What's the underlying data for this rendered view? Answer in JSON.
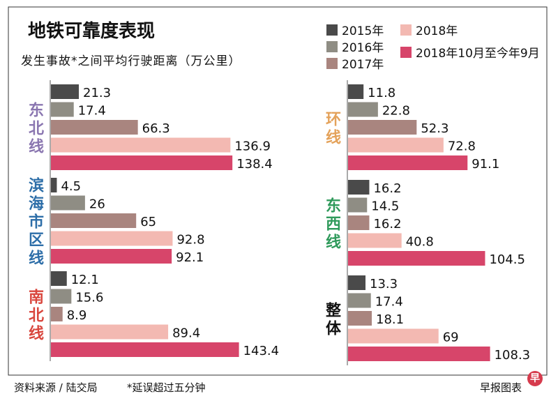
{
  "header": {
    "title": "地铁可靠度表现",
    "subtitle": "发生事故*之间平均行驶距离（万公里）"
  },
  "footer": {
    "source": "资料来源 / 陆交局",
    "note": "*延误超过五分钟",
    "credit": "早报图表",
    "stamp": "早"
  },
  "colors": {
    "s2015": "#4a4a4a",
    "s2016": "#8f8d84",
    "s2017": "#a9857f",
    "s2018": "#f3b9b2",
    "s2018_10": "#d7456a"
  },
  "chart_data": {
    "type": "bar",
    "orientation": "horizontal",
    "title": "地铁可靠度表现",
    "subtitle": "发生事故*之间平均行驶距离（万公里）",
    "unit": "万公里",
    "series": [
      {
        "name": "2015年",
        "color": "#4a4a4a"
      },
      {
        "name": "2016年",
        "color": "#8f8d84"
      },
      {
        "name": "2017年",
        "color": "#a9857f"
      },
      {
        "name": "2018年",
        "color": "#f3b9b2"
      },
      {
        "name": "2018年10月至今年9月",
        "color": "#d7456a"
      }
    ],
    "groups": [
      {
        "name": "东北线",
        "label_chars": [
          "东",
          "北",
          "线"
        ],
        "label_color": "#8a76b0",
        "values": [
          21.3,
          17.4,
          66.3,
          136.9,
          138.4
        ],
        "labels": [
          "21.3",
          "17.4",
          "66.3",
          "136.9",
          "138.4"
        ]
      },
      {
        "name": "滨海市区线",
        "label_chars": [
          "滨",
          "海",
          "市",
          "区",
          "线"
        ],
        "label_color": "#2d6ea8",
        "values": [
          4.5,
          26,
          65,
          92.8,
          92.1
        ],
        "labels": [
          "4.5",
          "26",
          "65",
          "92.8",
          "92.1"
        ]
      },
      {
        "name": "南北线",
        "label_chars": [
          "南",
          "北",
          "线"
        ],
        "label_color": "#d9463d",
        "values": [
          12.1,
          15.6,
          8.9,
          89.4,
          143.4
        ],
        "labels": [
          "12.1",
          "15.6",
          "8.9",
          "89.4",
          "143.4"
        ]
      },
      {
        "name": "环线",
        "label_chars": [
          "环",
          "线"
        ],
        "label_color": "#e4a25a",
        "values": [
          11.8,
          22.8,
          52.3,
          72.8,
          91.1
        ],
        "labels": [
          "11.8",
          "22.8",
          "52.3",
          "72.8",
          "91.1"
        ]
      },
      {
        "name": "东西线",
        "label_chars": [
          "东",
          "西",
          "线"
        ],
        "label_color": "#2f9a5b",
        "values": [
          16.2,
          14.5,
          16.2,
          40.8,
          104.5
        ],
        "labels": [
          "16.2",
          "14.5",
          "16.2",
          "40.8",
          "104.5"
        ]
      },
      {
        "name": "整体",
        "label_chars": [
          "整",
          "体"
        ],
        "label_color": "#111111",
        "values": [
          13.3,
          17.4,
          18.1,
          69,
          108.3
        ],
        "labels": [
          "13.3",
          "17.4",
          "18.1",
          "69",
          "108.3"
        ]
      }
    ]
  }
}
